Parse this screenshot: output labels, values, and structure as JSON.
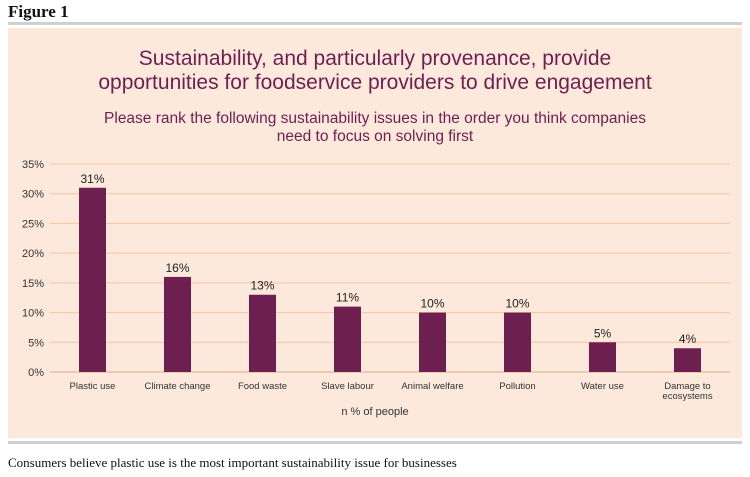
{
  "figure_label": "Figure 1",
  "caption": "Consumers believe plastic use is the most important sustainability issue for businesses",
  "colors": {
    "bar": "#6d1f4f",
    "panel": "#fde9dc",
    "grid": "#f2c6a2",
    "title": "#6d1f4f"
  },
  "chart_data": {
    "type": "bar",
    "title": "Sustainability, and particularly provenance, provide opportunities for foodservice providers to drive engagement",
    "title_lines": [
      "Sustainability, and particularly provenance, provide",
      "opportunities for foodservice providers to drive engagement"
    ],
    "subtitle": "Please rank the following sustainability issues in the order you think companies need to focus on solving first",
    "subtitle_lines": [
      "Please rank the following sustainability issues in the order you think companies",
      "need to focus on solving first"
    ],
    "xlabel": "n % of people",
    "ylabel": "",
    "ylim": [
      0,
      35
    ],
    "yticks": [
      "0%",
      "5%",
      "10%",
      "15%",
      "20%",
      "25%",
      "30%",
      "35%"
    ],
    "grid": true,
    "categories": [
      "Plastic use",
      "Climate change",
      "Food waste",
      "Slave labour",
      "Animal welfare",
      "Pollution",
      "Water use",
      "Damage to ecosystems"
    ],
    "category_lines": [
      [
        "Plastic use"
      ],
      [
        "Climate change"
      ],
      [
        "Food waste"
      ],
      [
        "Slave labour"
      ],
      [
        "Animal welfare"
      ],
      [
        "Pollution"
      ],
      [
        "Water use"
      ],
      [
        "Damage to",
        "ecosystems"
      ]
    ],
    "values": [
      31,
      16,
      13,
      11,
      10,
      10,
      5,
      4
    ],
    "data_labels": [
      "31%",
      "16%",
      "13%",
      "11%",
      "10%",
      "10%",
      "5%",
      "4%"
    ]
  }
}
